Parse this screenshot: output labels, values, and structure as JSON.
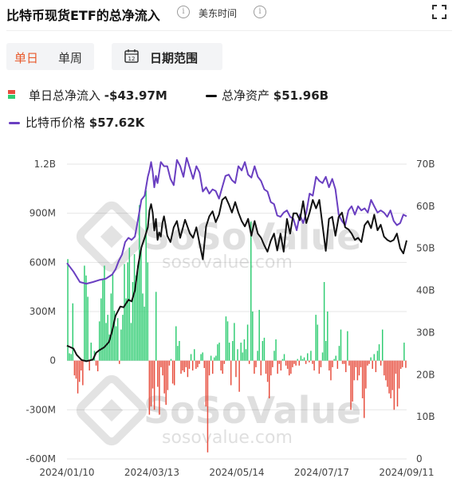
{
  "header": {
    "title": "比特币现货ETF的总净流入",
    "info_glyph": "i",
    "timezone_label": "美东时间"
  },
  "controls": {
    "period_tabs": [
      "单日",
      "单周"
    ],
    "active_tab": "单日",
    "date_range_label": "日期范围",
    "calendar_day": "12"
  },
  "legend": {
    "net_inflow_label": "单日总净流入",
    "net_inflow_value": "-$43.97M",
    "total_assets_label": "总净资产",
    "total_assets_value": "$51.96B",
    "btc_price_label": "比特币价格",
    "btc_price_value": "$57.62K"
  },
  "watermark": {
    "brand": "SoSoValue",
    "site": "sosovalue.com"
  },
  "colors": {
    "inflow_positive": "#2ecc71",
    "inflow_negative": "#e74c3c",
    "total_assets_line": "#111111",
    "btc_price_line": "#6a3fc1",
    "accent": "#e85a2c",
    "grid": "#e6e6e6"
  },
  "chart_data": {
    "type": "bar+line",
    "x_tick_labels": [
      "2024/01/10",
      "2024/03/13",
      "2024/05/14",
      "2024/07/17",
      "2024/09/11"
    ],
    "y_left": {
      "ticks": [
        "1.2B",
        "900M",
        "600M",
        "300M",
        "0",
        "-300M",
        "-600M"
      ],
      "ylim": [
        -600000000,
        1200000000
      ]
    },
    "y_right": {
      "ticks": [
        "70B",
        "60B",
        "50B",
        "40B",
        "30B",
        "20B",
        "10B",
        "0"
      ],
      "ylim": [
        0,
        70
      ]
    },
    "series": [
      {
        "name": "单日总净流入",
        "axis": "left",
        "unit": "USD millions",
        "values": [
          620,
          45,
          40,
          350,
          -90,
          -110,
          -200,
          -130,
          -60,
          -150,
          580,
          520,
          390,
          -60,
          110,
          10,
          60,
          -30,
          -65,
          240,
          380,
          500,
          580,
          230,
          280,
          160,
          410,
          540,
          305,
          210,
          260,
          -20,
          190,
          280,
          590,
          380,
          600,
          690,
          230,
          480,
          650,
          520,
          580,
          950,
          680,
          410,
          330,
          1040,
          600,
          -330,
          -280,
          -170,
          -300,
          420,
          -160,
          -330,
          -40,
          -90,
          -200,
          -270,
          -180,
          -30,
          10,
          -140,
          -150,
          210,
          90,
          120,
          -80,
          -60,
          -70,
          -40,
          -100,
          -50,
          40,
          -60,
          70,
          -50,
          -40,
          -20,
          40,
          50,
          -45,
          -280,
          -560,
          -90,
          30,
          -80,
          20,
          30,
          100,
          110,
          -60,
          -80,
          -20,
          270,
          240,
          110,
          -150,
          120,
          230,
          -100,
          70,
          -190,
          110,
          50,
          130,
          70,
          220,
          -20,
          850,
          300,
          -80,
          -40,
          60,
          310,
          -90,
          120,
          140,
          -80,
          -130,
          -230,
          -90,
          -40,
          60,
          130,
          -80,
          -20,
          -60,
          10,
          40,
          -30,
          -50,
          -90,
          -80,
          -40,
          -20,
          -30,
          10,
          -30,
          30,
          10,
          20,
          -20,
          45,
          -10,
          60,
          -20,
          -60,
          280,
          220,
          -80,
          -40,
          50,
          480,
          120,
          300,
          -60,
          -120,
          -40,
          10,
          30,
          -50,
          90,
          190,
          -20,
          -20,
          -70,
          180,
          -30,
          -300,
          -250,
          -120,
          -40,
          -120,
          -90,
          -40,
          -230,
          -350,
          -170,
          -30,
          -20,
          20,
          -50,
          40,
          -70,
          60,
          100,
          -30,
          190,
          -90,
          -120,
          -160,
          -200,
          -230,
          -180,
          -300,
          -80,
          -280,
          -170,
          -50,
          -40,
          110,
          -44
        ],
        "positive_color": "#2ecc71",
        "negative_color": "#e74c3c"
      },
      {
        "name": "总净资产",
        "axis": "right",
        "unit": "USD billions",
        "x": [
          0,
          4,
          6,
          9,
          12,
          16,
          18,
          20,
          23,
          26,
          28,
          30,
          33,
          35,
          38,
          40,
          42,
          44,
          46,
          48,
          50,
          51,
          52,
          53,
          54,
          55,
          56,
          57,
          58,
          59,
          60,
          61,
          62,
          64,
          66,
          68,
          70,
          73,
          76,
          78,
          80,
          82,
          84,
          86,
          88,
          90,
          92,
          94,
          96,
          98,
          100,
          102,
          104,
          106,
          108,
          110,
          112,
          114,
          116,
          118,
          120,
          122,
          124,
          126,
          128,
          130,
          132,
          134,
          136,
          138,
          140,
          142,
          144,
          146,
          148,
          150,
          152,
          154,
          156,
          158,
          160,
          162,
          164,
          166,
          168,
          170,
          172,
          174,
          176,
          178,
          180,
          182,
          184,
          186,
          188,
          190,
          192,
          194,
          196,
          198,
          200,
          202,
          204,
          206,
          208,
          210
        ],
        "values": [
          26.9,
          26.2,
          24.7,
          23.5,
          23.2,
          23.6,
          25.2,
          25.8,
          26.5,
          27.8,
          30.5,
          34,
          36.2,
          36,
          37.8,
          37.4,
          40,
          46,
          50.2,
          52.5,
          55,
          59,
          60.5,
          58.5,
          54.2,
          57,
          52,
          53.8,
          52.8,
          56,
          57.6,
          55.5,
          53,
          51.5,
          55,
          56.5,
          52.5,
          56.8,
          53.5,
          52.5,
          55,
          51.2,
          47.4,
          55.2,
          57.6,
          58.8,
          56.2,
          58,
          61.5,
          62.2,
          60.5,
          58.5,
          61,
          58.5,
          56.5,
          55.2,
          57,
          53,
          56.5,
          53.5,
          52.5,
          50.7,
          49.2,
          51.8,
          53.5,
          49.5,
          53.5,
          49.2,
          57,
          53.5,
          58.3,
          58.3,
          56.7,
          61.2,
          56,
          58.5,
          61.5,
          59.5,
          61.5,
          55.5,
          49.4,
          57,
          57.5,
          53,
          57.5,
          58.5,
          55,
          54.5,
          53.5,
          52,
          52.5,
          51.5,
          55.5,
          56.5,
          54.8,
          58,
          54.3,
          55.6,
          52.8,
          52,
          51.6,
          52,
          53.5,
          50,
          48.8,
          51.9
        ],
        "color": "#111111"
      },
      {
        "name": "比特币价格",
        "axis": "right",
        "unit": "USD thousands",
        "x": [
          0,
          4,
          8,
          12,
          16,
          20,
          24,
          28,
          30,
          32,
          34,
          36,
          38,
          40,
          42,
          44,
          46,
          48,
          50,
          51,
          52,
          53,
          54,
          55,
          56,
          58,
          60,
          62,
          64,
          66,
          68,
          70,
          72,
          74,
          76,
          78,
          80,
          82,
          84,
          86,
          88,
          90,
          92,
          94,
          96,
          98,
          100,
          102,
          104,
          106,
          108,
          110,
          112,
          114,
          116,
          118,
          120,
          122,
          124,
          126,
          128,
          130,
          132,
          134,
          136,
          138,
          140,
          142,
          144,
          146,
          148,
          150,
          152,
          154,
          156,
          158,
          160,
          162,
          164,
          166,
          168,
          170,
          172,
          174,
          176,
          178,
          180,
          182,
          184,
          186,
          188,
          190,
          192,
          194,
          196,
          198,
          200,
          202,
          204,
          206,
          208,
          210
        ],
        "values": [
          46.5,
          44.5,
          42,
          41.6,
          42,
          42.5,
          42.8,
          43.8,
          45,
          47,
          48.5,
          51.5,
          52.5,
          52,
          52.8,
          57,
          61.5,
          62.5,
          67,
          68.5,
          70.5,
          68.2,
          64.5,
          67.2,
          65.5,
          70.5,
          69.5,
          69.5,
          66.5,
          65,
          71,
          69.5,
          67,
          71.5,
          69,
          66.5,
          69.5,
          68,
          63.5,
          64.5,
          63,
          64,
          63.6,
          61.8,
          64.5,
          67.2,
          67.5,
          66.2,
          65.5,
          69.5,
          68.5,
          70.5,
          67.5,
          66.8,
          69.5,
          67,
          66,
          64,
          63.5,
          61,
          60.5,
          57.8,
          57.5,
          58.5,
          59,
          57.5,
          57,
          54.3,
          58,
          56,
          58.5,
          63,
          62.5,
          67,
          66,
          65.5,
          67,
          64.5,
          66.5,
          64,
          58,
          56.5,
          55.5,
          59,
          60,
          58,
          60,
          59,
          59.5,
          58.5,
          61.5,
          60,
          58.5,
          59,
          58.5,
          57.5,
          59,
          56.5,
          55.5,
          56,
          58,
          57.6
        ],
        "color": "#6a3fc1"
      }
    ],
    "grid": true,
    "legend_position": "top-left"
  }
}
